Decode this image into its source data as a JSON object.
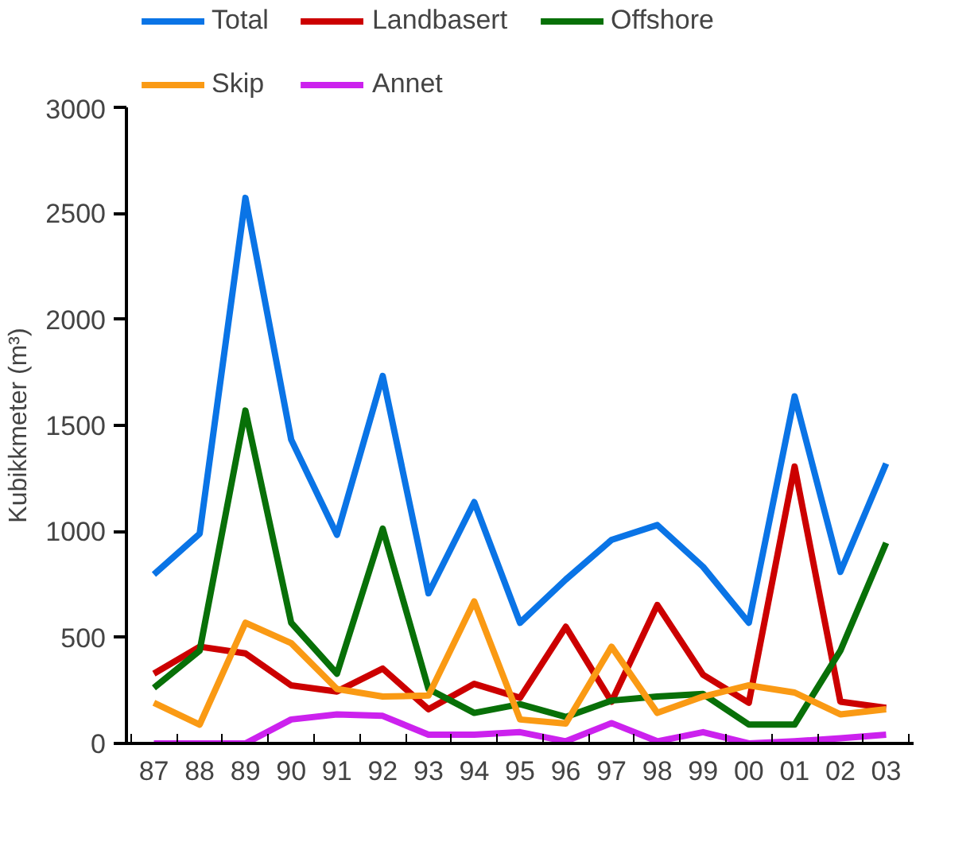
{
  "chart_data": {
    "type": "line",
    "ylabel": "Kubikkmeter (m³)",
    "categories": [
      "87",
      "88",
      "89",
      "90",
      "91",
      "92",
      "93",
      "94",
      "95",
      "96",
      "97",
      "98",
      "99",
      "00",
      "01",
      "02",
      "03"
    ],
    "ylim": [
      0,
      3000
    ],
    "yticks": [
      0,
      500,
      1000,
      1500,
      2000,
      2500,
      3000
    ],
    "grid": false,
    "legend": "top",
    "line_style": "solid",
    "series": [
      {
        "name": "Total",
        "color": "#0a74e6",
        "values": [
          797,
          989,
          2573,
          1433,
          984,
          1733,
          708,
          1138,
          569,
          773,
          960,
          1030,
          833,
          569,
          1637,
          809,
          1320
        ]
      },
      {
        "name": "Landbasert",
        "color": "#cc0000",
        "values": [
          329,
          456,
          425,
          274,
          245,
          353,
          161,
          281,
          215,
          550,
          197,
          653,
          324,
          192,
          1306,
          197,
          168
        ]
      },
      {
        "name": "Offshore",
        "color": "#087008",
        "values": [
          262,
          437,
          1570,
          569,
          329,
          1013,
          257,
          144,
          185,
          125,
          202,
          221,
          233,
          89,
          89,
          437,
          946
        ]
      },
      {
        "name": "Skip",
        "color": "#fa9a14",
        "values": [
          192,
          89,
          569,
          473,
          257,
          221,
          226,
          670,
          113,
          94,
          456,
          144,
          221,
          274,
          240,
          137,
          161
        ]
      },
      {
        "name": "Annet",
        "color": "#cc22ee",
        "values": [
          0,
          0,
          0,
          113,
          137,
          130,
          41,
          41,
          53,
          10,
          96,
          10,
          53,
          0,
          10,
          24,
          41
        ]
      }
    ]
  }
}
